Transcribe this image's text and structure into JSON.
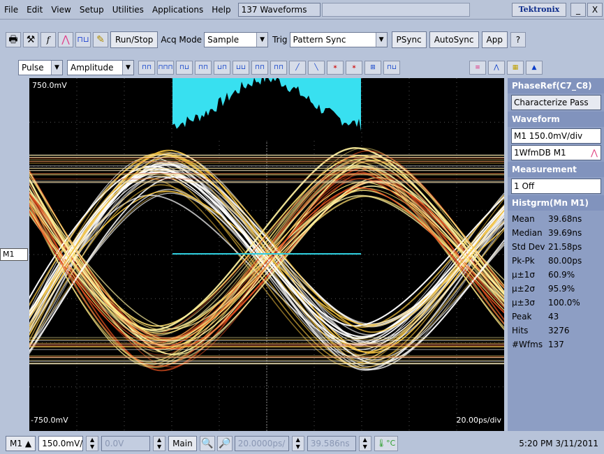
{
  "menu": {
    "items": [
      "File",
      "Edit",
      "View",
      "Setup",
      "Utilities",
      "Applications",
      "Help"
    ],
    "waveform_count": "137 Waveforms",
    "brand": "Tektronix",
    "minimize": "_",
    "close": "X"
  },
  "toolbar": {
    "run_stop": "Run/Stop",
    "acq_mode_label": "Acq Mode",
    "acq_mode_value": "Sample",
    "trig_label": "Trig",
    "trig_value": "Pattern Sync",
    "psync": "PSync",
    "autosync": "AutoSync",
    "app": "App"
  },
  "measbar": {
    "category": "Pulse",
    "type": "Amplitude"
  },
  "screen": {
    "top_label": "750.0mV",
    "bottom_label": "-750.0mV",
    "timebase": "20.00ps/div",
    "ref_marker": "M1"
  },
  "panel": {
    "phase_ref_title": "PhaseRef(C7_C8)",
    "characterize": "Characterize Pass",
    "waveform_title": "Waveform",
    "waveform_scale": "M1 150.0mV/div",
    "waveform_db": "1WfmDB M1",
    "measurement_title": "Measurement",
    "measurement_value": "1 Off",
    "histogram_title": "Histgrm(Mn M1)",
    "stats": [
      {
        "k": "Mean",
        "v": "39.68ns"
      },
      {
        "k": "Median",
        "v": "39.69ns"
      },
      {
        "k": "Std Dev",
        "v": "21.58ps"
      },
      {
        "k": "Pk-Pk",
        "v": "80.00ps"
      },
      {
        "k": "μ±1σ",
        "v": "60.9%"
      },
      {
        "k": "μ±2σ",
        "v": "95.9%"
      },
      {
        "k": "μ±3σ",
        "v": "100.0%"
      },
      {
        "k": "Peak",
        "v": "43"
      },
      {
        "k": "Hits",
        "v": "3276"
      },
      {
        "k": "#Wfms",
        "v": "137"
      }
    ]
  },
  "bottom": {
    "channel": "M1",
    "scale": "150.0mV/div",
    "offset": "0.0V",
    "main": "Main",
    "horiz_scale": "20.0000ps/",
    "position": "39.586ns",
    "temp_unit": "°C",
    "datetime": "5:20 PM 3/11/2011"
  }
}
